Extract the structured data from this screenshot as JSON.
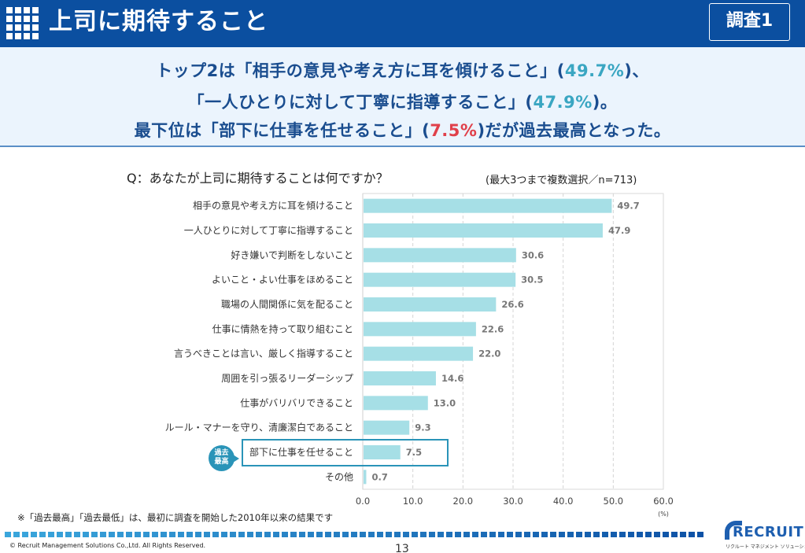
{
  "header": {
    "title": "上司に期待すること",
    "badge": "調査1"
  },
  "summary": {
    "line1_prefix": "トップ2は「相手の意見や考え方に耳を傾けること」(",
    "line1_pct": "49.7%",
    "line1_suffix": ")、",
    "line2_prefix": "「一人ひとりに対して丁寧に指導すること」(",
    "line2_pct": "47.9%",
    "line2_suffix": ")。",
    "line3_prefix": "最下位は「部下に仕事を任せること」(",
    "line3_pct": "7.5%",
    "line3_suffix": ")だが過去最高となった。",
    "colors": {
      "text": "#1a4d8f",
      "highlight_blue": "#3aa6c2",
      "highlight_red": "#e0404a"
    }
  },
  "question": "Q：あなたが上司に期待することは何ですか？",
  "sample_note": "(最大3つまで複数選択／n=713)",
  "record_callout": {
    "label_line1": "過去",
    "label_line2": "最高"
  },
  "footnote": "※「過去最高」「過去最低」は、最初に調査を開始した2010年以来の結果です",
  "footer": {
    "copyright": "© Recruit Management Solutions Co.,Ltd. All Rights Reserved.",
    "page_number": "13",
    "logo_text": "RECRUIT",
    "logo_sub": "リクルート マネジメント ソリューションズ"
  },
  "chart_data": {
    "type": "bar",
    "orientation": "horizontal",
    "title": "Q：あなたが上司に期待することは何ですか？",
    "xlabel": "(%)",
    "ylabel": "",
    "xlim": [
      0,
      60
    ],
    "xticks": [
      0,
      10,
      20,
      30,
      40,
      50,
      60
    ],
    "xtick_labels": [
      "0.0",
      "10.0",
      "20.0",
      "30.0",
      "40.0",
      "50.0",
      "60.0"
    ],
    "grid": "vertical dashed",
    "bar_color": "#a6dfe6",
    "categories": [
      "相手の意見や考え方に耳を傾けること",
      "一人ひとりに対して丁寧に指導すること",
      "好き嫌いで判断をしないこと",
      "よいこと・よい仕事をほめること",
      "職場の人間関係に気を配ること",
      "仕事に情熱を持って取り組むこと",
      "言うべきことは言い、厳しく指導すること",
      "周囲を引っ張るリーダーシップ",
      "仕事がバリバリできること",
      "ルール・マナーを守り、清廉潔白であること",
      "部下に仕事を任せること",
      "その他"
    ],
    "values": [
      49.7,
      47.9,
      30.6,
      30.5,
      26.6,
      22.6,
      22.0,
      14.6,
      13.0,
      9.3,
      7.5,
      0.7
    ],
    "value_labels": [
      "49.7",
      "47.9",
      "30.6",
      "30.5",
      "26.6",
      "22.6",
      "22.0",
      "14.6",
      "13.0",
      "9.3",
      "7.5",
      "0.7"
    ],
    "highlighted_category": "部下に仕事を任せること",
    "annotation": "過去最高"
  }
}
